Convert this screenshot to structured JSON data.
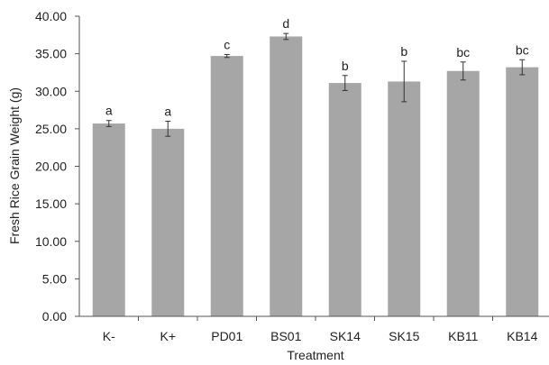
{
  "chart_data": {
    "type": "bar",
    "title": "",
    "xlabel": "Treatment",
    "ylabel": "Fresh Rice Grain Weight (g)",
    "ylim": [
      0,
      40
    ],
    "yticks": [
      "0.00",
      "5.00",
      "10.00",
      "15.00",
      "20.00",
      "25.00",
      "30.00",
      "35.00",
      "40.00"
    ],
    "categories": [
      "K-",
      "K+",
      "PD01",
      "BS01",
      "SK14",
      "SK15",
      "KB11",
      "KB14"
    ],
    "values": [
      25.7,
      25.0,
      34.7,
      37.3,
      31.1,
      31.3,
      32.7,
      33.2
    ],
    "errors": [
      0.4,
      1.0,
      0.2,
      0.4,
      1.0,
      2.7,
      1.2,
      1.0
    ],
    "letters": [
      "a",
      "a",
      "c",
      "d",
      "b",
      "b",
      "bc",
      "bc"
    ],
    "grid": false,
    "legend": "none",
    "bar_color": "#a6a6a6",
    "error_color": "#333333"
  }
}
